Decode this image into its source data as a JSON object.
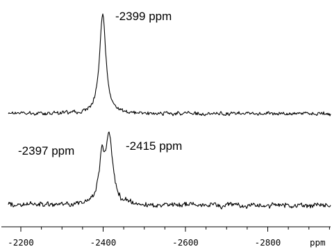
{
  "chart_data": {
    "type": "line",
    "x_axis": {
      "range": [
        -2150,
        -3000
      ],
      "reversed": true,
      "major_ticks": [
        -2200,
        -2400,
        -2600,
        -2800
      ],
      "minor_tick_step": 50,
      "tick_labels": [
        "-2200",
        "-2400",
        "-2600",
        "-2800"
      ],
      "unit_label": "ppm"
    },
    "grid": false,
    "legend": "none",
    "spectra": [
      {
        "peaks": [
          {
            "x": -2399,
            "relative_height": 1.0,
            "fwhm": 18
          }
        ],
        "annotations": [
          {
            "text": "-2399 ppm"
          }
        ]
      },
      {
        "peaks": [
          {
            "x": -2397,
            "relative_height": 0.55,
            "fwhm": 16
          },
          {
            "x": -2415,
            "relative_height": 0.85,
            "fwhm": 20
          }
        ],
        "annotations": [
          {
            "text": "-2397 ppm"
          },
          {
            "text": "-2415 ppm"
          }
        ]
      }
    ]
  }
}
